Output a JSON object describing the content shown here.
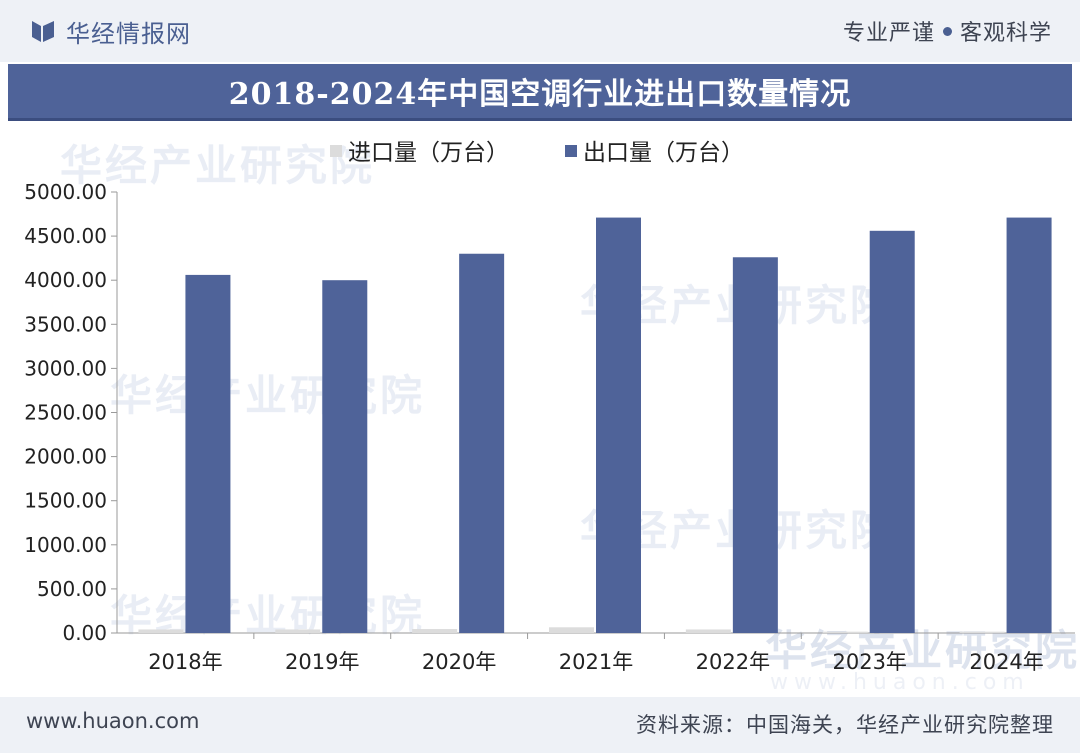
{
  "header": {
    "logo_text": "华经情报网",
    "slogan_left": "专业严谨",
    "slogan_right": "客观科学"
  },
  "footer": {
    "website": "www.huaon.com",
    "source": "资料来源：中国海关，华经产业研究院整理"
  },
  "watermark": {
    "text": "华经产业研究院",
    "url": "www.huaon.com"
  },
  "colors": {
    "import": "#dcdcdc",
    "export": "#4f6399",
    "brand": "#4a5f91"
  },
  "chart_data": {
    "type": "bar",
    "title": "2018-2024年中国空调行业进出口数量情况",
    "categories": [
      "2018年",
      "2019年",
      "2020年",
      "2021年",
      "2022年",
      "2023年",
      "2024年"
    ],
    "series": [
      {
        "name": "进口量（万台）",
        "values": [
          40,
          40,
          45,
          65,
          40,
          15,
          15
        ]
      },
      {
        "name": "出口量（万台）",
        "values": [
          4060,
          4000,
          4300,
          4710,
          4260,
          4560,
          4710
        ]
      }
    ],
    "ylim": [
      0,
      5000
    ],
    "yticks": [
      "0.00",
      "500.00",
      "1000.00",
      "1500.00",
      "2000.00",
      "2500.00",
      "3000.00",
      "3500.00",
      "4000.00",
      "4500.00",
      "5000.00"
    ],
    "legend_position": "top-center",
    "grid": false
  }
}
